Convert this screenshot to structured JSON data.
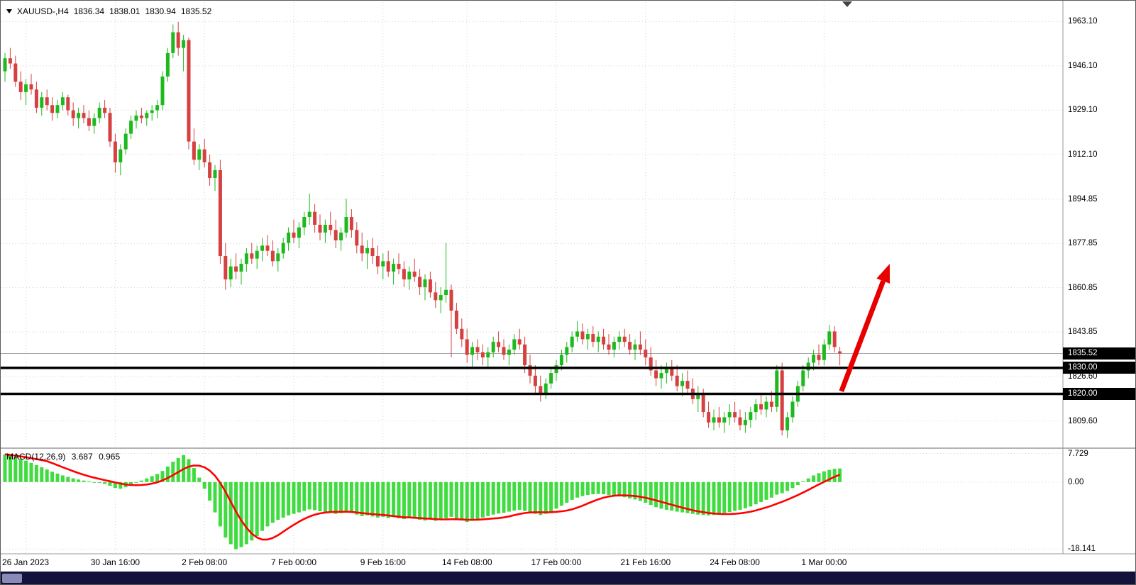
{
  "header": {
    "symbol": "XAUUSD-,H4",
    "open": "1836.34",
    "high": "1838.01",
    "low": "1830.94",
    "close": "1835.52"
  },
  "macd_header": {
    "label": "MACD(12,26,9)",
    "macd_value": "3.687",
    "signal_value": "0.965"
  },
  "price_axis": {
    "ticks": [
      {
        "text": "1963.10",
        "value": 1963.1
      },
      {
        "text": "1946.10",
        "value": 1946.1
      },
      {
        "text": "1929.10",
        "value": 1929.1
      },
      {
        "text": "1912.10",
        "value": 1912.1
      },
      {
        "text": "1894.85",
        "value": 1894.85
      },
      {
        "text": "1877.85",
        "value": 1877.85
      },
      {
        "text": "1860.85",
        "value": 1860.85
      },
      {
        "text": "1843.85",
        "value": 1843.85
      },
      {
        "text": "1826.60",
        "value": 1826.6
      },
      {
        "text": "1809.60",
        "value": 1809.6
      }
    ],
    "badges": [
      {
        "text": "1835.52",
        "value": 1835.52,
        "kind": "current-price"
      },
      {
        "text": "1830.00",
        "value": 1830.0,
        "kind": "horizontal-line"
      },
      {
        "text": "1820.00",
        "value": 1820.0,
        "kind": "horizontal-line"
      }
    ]
  },
  "macd_axis": {
    "ticks": [
      {
        "text": "7.729",
        "value": 7.729
      },
      {
        "text": "0.00",
        "value": 0.0
      },
      {
        "text": "-18.141",
        "value": -18.141
      }
    ]
  },
  "time_axis": {
    "ticks": [
      {
        "text": "26 Jan 2023",
        "index": 4
      },
      {
        "text": "30 Jan 16:00",
        "index": 21
      },
      {
        "text": "2 Feb 08:00",
        "index": 38
      },
      {
        "text": "7 Feb 00:00",
        "index": 55
      },
      {
        "text": "9 Feb 16:00",
        "index": 72
      },
      {
        "text": "14 Feb 08:00",
        "index": 88
      },
      {
        "text": "17 Feb 00:00",
        "index": 105
      },
      {
        "text": "21 Feb 16:00",
        "index": 122
      },
      {
        "text": "24 Feb 08:00",
        "index": 139
      },
      {
        "text": "1 Mar 00:00",
        "index": 156
      }
    ]
  },
  "colors": {
    "bull": "#1db91d",
    "bear": "#d64040",
    "macd_hist": "#3fdc3f",
    "signal_line": "#ff0000",
    "hline": "#000000",
    "grid": "#d6d6d6",
    "badge_bg": "#000000",
    "badge_text": "#ffffff",
    "arrow": "#e80000",
    "current_price_line": "#a8a8a8",
    "axis_separator": "#9a9a9a",
    "scrollbar_bg": "#12123c",
    "scrollbar_thumb": "#8a8ab8",
    "shift_marker": "#444444"
  },
  "chart_data": {
    "type": "candlestick",
    "symbol": "XAUUSD-",
    "timeframe": "H4",
    "title": "XAUUSD-,H4 1836.34 1838.01 1830.94 1835.52",
    "current_ohlc": {
      "open": 1836.34,
      "high": 1838.01,
      "low": 1830.94,
      "close": 1835.52
    },
    "current_price": 1835.52,
    "price_range": [
      1800.5,
      1969.5
    ],
    "grid": true,
    "hlines": [
      1830.0,
      1820.0
    ],
    "candles": [
      [
        1944,
        1951,
        1940,
        1949
      ],
      [
        1949,
        1953,
        1945,
        1947
      ],
      [
        1947,
        1950,
        1938,
        1940
      ],
      [
        1940,
        1944,
        1933,
        1936
      ],
      [
        1936,
        1941,
        1931,
        1939
      ],
      [
        1939,
        1943,
        1935,
        1937
      ],
      [
        1937,
        1940,
        1928,
        1930
      ],
      [
        1930,
        1936,
        1927,
        1934
      ],
      [
        1934,
        1937,
        1929,
        1931
      ],
      [
        1931,
        1934,
        1925,
        1928
      ],
      [
        1928,
        1933,
        1926,
        1931
      ],
      [
        1931,
        1936,
        1929,
        1934
      ],
      [
        1934,
        1935,
        1927,
        1929
      ],
      [
        1929,
        1932,
        1923,
        1926
      ],
      [
        1926,
        1930,
        1922,
        1928
      ],
      [
        1928,
        1931,
        1924,
        1926
      ],
      [
        1926,
        1929,
        1921,
        1923
      ],
      [
        1923,
        1928,
        1920,
        1926
      ],
      [
        1926,
        1932,
        1924,
        1930
      ],
      [
        1930,
        1933,
        1926,
        1928
      ],
      [
        1928,
        1930,
        1915,
        1917
      ],
      [
        1917,
        1920,
        1905,
        1909
      ],
      [
        1909,
        1916,
        1904,
        1914
      ],
      [
        1914,
        1922,
        1912,
        1920
      ],
      [
        1920,
        1927,
        1918,
        1925
      ],
      [
        1925,
        1929,
        1922,
        1927
      ],
      [
        1927,
        1930,
        1924,
        1926
      ],
      [
        1926,
        1929,
        1923,
        1928
      ],
      [
        1928,
        1931,
        1925,
        1929
      ],
      [
        1929,
        1933,
        1926,
        1931
      ],
      [
        1931,
        1944,
        1929,
        1942
      ],
      [
        1942,
        1953,
        1940,
        1951
      ],
      [
        1951,
        1962,
        1949,
        1959
      ],
      [
        1959,
        1963,
        1950,
        1953
      ],
      [
        1953,
        1958,
        1944,
        1956
      ],
      [
        1956,
        1957,
        1914,
        1917
      ],
      [
        1917,
        1922,
        1908,
        1910
      ],
      [
        1910,
        1916,
        1906,
        1914
      ],
      [
        1914,
        1918,
        1907,
        1909
      ],
      [
        1909,
        1912,
        1900,
        1903
      ],
      [
        1903,
        1908,
        1898,
        1906
      ],
      [
        1906,
        1910,
        1870,
        1873
      ],
      [
        1873,
        1878,
        1860,
        1864
      ],
      [
        1864,
        1872,
        1861,
        1869
      ],
      [
        1869,
        1874,
        1864,
        1867
      ],
      [
        1867,
        1872,
        1862,
        1870
      ],
      [
        1870,
        1876,
        1867,
        1874
      ],
      [
        1874,
        1878,
        1870,
        1872
      ],
      [
        1872,
        1877,
        1868,
        1875
      ],
      [
        1875,
        1880,
        1871,
        1877
      ],
      [
        1877,
        1881,
        1873,
        1875
      ],
      [
        1875,
        1879,
        1869,
        1871
      ],
      [
        1871,
        1876,
        1867,
        1874
      ],
      [
        1874,
        1880,
        1872,
        1878
      ],
      [
        1878,
        1884,
        1875,
        1882
      ],
      [
        1882,
        1887,
        1878,
        1880
      ],
      [
        1880,
        1886,
        1876,
        1884
      ],
      [
        1884,
        1890,
        1881,
        1888
      ],
      [
        1888,
        1897,
        1885,
        1890
      ],
      [
        1890,
        1893,
        1882,
        1885
      ],
      [
        1885,
        1889,
        1879,
        1882
      ],
      [
        1882,
        1887,
        1878,
        1885
      ],
      [
        1885,
        1890,
        1881,
        1883
      ],
      [
        1883,
        1887,
        1876,
        1879
      ],
      [
        1879,
        1884,
        1875,
        1882
      ],
      [
        1882,
        1895,
        1880,
        1888
      ],
      [
        1888,
        1891,
        1880,
        1883
      ],
      [
        1883,
        1886,
        1874,
        1877
      ],
      [
        1877,
        1882,
        1871,
        1874
      ],
      [
        1874,
        1879,
        1868,
        1876
      ],
      [
        1876,
        1880,
        1870,
        1873
      ],
      [
        1873,
        1877,
        1866,
        1869
      ],
      [
        1869,
        1874,
        1864,
        1871
      ],
      [
        1871,
        1875,
        1865,
        1867
      ],
      [
        1867,
        1872,
        1862,
        1870
      ],
      [
        1870,
        1874,
        1866,
        1868
      ],
      [
        1868,
        1871,
        1861,
        1864
      ],
      [
        1864,
        1869,
        1860,
        1867
      ],
      [
        1867,
        1872,
        1863,
        1865
      ],
      [
        1865,
        1868,
        1858,
        1861
      ],
      [
        1861,
        1866,
        1856,
        1864
      ],
      [
        1864,
        1867,
        1857,
        1859
      ],
      [
        1859,
        1863,
        1853,
        1856
      ],
      [
        1856,
        1861,
        1851,
        1858
      ],
      [
        1858,
        1878,
        1855,
        1860
      ],
      [
        1860,
        1862,
        1834,
        1852
      ],
      [
        1852,
        1855,
        1843,
        1845
      ],
      [
        1845,
        1849,
        1838,
        1841
      ],
      [
        1841,
        1845,
        1832,
        1835
      ],
      [
        1835,
        1840,
        1830,
        1838
      ],
      [
        1838,
        1841,
        1833,
        1836
      ],
      [
        1836,
        1839,
        1831,
        1834
      ],
      [
        1834,
        1838,
        1830,
        1836
      ],
      [
        1836,
        1842,
        1834,
        1840
      ],
      [
        1840,
        1844,
        1836,
        1838
      ],
      [
        1838,
        1841,
        1833,
        1835
      ],
      [
        1835,
        1839,
        1831,
        1837
      ],
      [
        1837,
        1843,
        1835,
        1841
      ],
      [
        1841,
        1845,
        1837,
        1839
      ],
      [
        1839,
        1842,
        1828,
        1831
      ],
      [
        1831,
        1835,
        1824,
        1827
      ],
      [
        1827,
        1831,
        1820,
        1823
      ],
      [
        1823,
        1827,
        1817,
        1820
      ],
      [
        1820,
        1826,
        1818,
        1824
      ],
      [
        1824,
        1830,
        1822,
        1828
      ],
      [
        1828,
        1833,
        1825,
        1831
      ],
      [
        1831,
        1837,
        1829,
        1835
      ],
      [
        1835,
        1840,
        1832,
        1838
      ],
      [
        1838,
        1844,
        1836,
        1842
      ],
      [
        1842,
        1848,
        1840,
        1844
      ],
      [
        1844,
        1847,
        1839,
        1841
      ],
      [
        1841,
        1845,
        1837,
        1843
      ],
      [
        1843,
        1846,
        1838,
        1840
      ],
      [
        1840,
        1844,
        1836,
        1842
      ],
      [
        1842,
        1845,
        1837,
        1839
      ],
      [
        1839,
        1843,
        1835,
        1837
      ],
      [
        1837,
        1842,
        1834,
        1840
      ],
      [
        1840,
        1844,
        1837,
        1842
      ],
      [
        1842,
        1845,
        1838,
        1840
      ],
      [
        1840,
        1843,
        1835,
        1837
      ],
      [
        1837,
        1841,
        1833,
        1839
      ],
      [
        1839,
        1844,
        1835,
        1837
      ],
      [
        1837,
        1841,
        1831,
        1834
      ],
      [
        1834,
        1838,
        1827,
        1829
      ],
      [
        1829,
        1833,
        1823,
        1826
      ],
      [
        1826,
        1831,
        1822,
        1828
      ],
      [
        1828,
        1832,
        1824,
        1830
      ],
      [
        1830,
        1833,
        1825,
        1827
      ],
      [
        1827,
        1831,
        1821,
        1823
      ],
      [
        1823,
        1828,
        1819,
        1825
      ],
      [
        1825,
        1829,
        1820,
        1822
      ],
      [
        1822,
        1826,
        1816,
        1818
      ],
      [
        1818,
        1823,
        1813,
        1820
      ],
      [
        1820,
        1822,
        1811,
        1813
      ],
      [
        1813,
        1817,
        1807,
        1809
      ],
      [
        1809,
        1814,
        1806,
        1811
      ],
      [
        1811,
        1815,
        1807,
        1809
      ],
      [
        1809,
        1813,
        1805,
        1811
      ],
      [
        1811,
        1816,
        1808,
        1813
      ],
      [
        1813,
        1817,
        1809,
        1811
      ],
      [
        1811,
        1814,
        1806,
        1808
      ],
      [
        1808,
        1813,
        1805,
        1810
      ],
      [
        1810,
        1815,
        1807,
        1813
      ],
      [
        1813,
        1818,
        1810,
        1816
      ],
      [
        1816,
        1820,
        1812,
        1814
      ],
      [
        1814,
        1819,
        1811,
        1817
      ],
      [
        1817,
        1821,
        1813,
        1815
      ],
      [
        1815,
        1831,
        1813,
        1829
      ],
      [
        1829,
        1832,
        1804,
        1806
      ],
      [
        1806,
        1813,
        1803,
        1811
      ],
      [
        1811,
        1819,
        1809,
        1817
      ],
      [
        1817,
        1825,
        1815,
        1823
      ],
      [
        1823,
        1831,
        1821,
        1829
      ],
      [
        1829,
        1834,
        1826,
        1832
      ],
      [
        1832,
        1837,
        1829,
        1835
      ],
      [
        1835,
        1839,
        1831,
        1833
      ],
      [
        1833,
        1841,
        1831,
        1839
      ],
      [
        1839,
        1846.5,
        1837,
        1844
      ],
      [
        1844,
        1846,
        1836,
        1838
      ],
      [
        1836.34,
        1838.01,
        1830.94,
        1835.52
      ]
    ],
    "indicator": {
      "type": "macd",
      "params": [
        12,
        26,
        9
      ],
      "macd_value": 3.687,
      "signal_value": 0.965,
      "signal_period": 9,
      "range": [
        -19.4,
        8.6
      ],
      "histogram": [
        7.5,
        7.2,
        6.8,
        6.3,
        5.8,
        5.2,
        4.6,
        4.0,
        3.4,
        2.8,
        2.3,
        1.8,
        1.4,
        1.0,
        0.7,
        0.4,
        0.2,
        0.0,
        -0.2,
        -0.5,
        -1.0,
        -1.6,
        -1.8,
        -1.4,
        -0.8,
        -0.2,
        0.4,
        1.0,
        1.6,
        2.2,
        3.0,
        4.2,
        5.5,
        6.5,
        7.3,
        6.2,
        3.8,
        1.2,
        -1.8,
        -5.0,
        -8.2,
        -12.0,
        -15.0,
        -16.8,
        -18.141,
        -17.6,
        -16.8,
        -15.8,
        -14.6,
        -13.2,
        -12.0,
        -11.0,
        -10.2,
        -9.6,
        -9.0,
        -8.6,
        -8.2,
        -7.8,
        -7.4,
        -7.6,
        -7.9,
        -8.1,
        -8.3,
        -8.6,
        -8.4,
        -8.0,
        -8.3,
        -8.8,
        -9.2,
        -9.0,
        -9.3,
        -9.6,
        -9.4,
        -9.7,
        -9.5,
        -9.8,
        -10.0,
        -9.7,
        -9.9,
        -10.2,
        -10.4,
        -10.1,
        -10.5,
        -10.3,
        -9.8,
        -9.4,
        -9.9,
        -10.4,
        -10.8,
        -10.5,
        -10.0,
        -9.6,
        -9.2,
        -8.8,
        -8.5,
        -8.3,
        -8.0,
        -7.7,
        -7.5,
        -7.8,
        -8.2,
        -8.6,
        -8.9,
        -8.6,
        -8.0,
        -7.2,
        -6.4,
        -5.6,
        -4.8,
        -4.2,
        -3.8,
        -3.5,
        -3.3,
        -3.2,
        -3.3,
        -3.5,
        -3.7,
        -3.9,
        -4.1,
        -4.4,
        -4.7,
        -5.1,
        -5.6,
        -6.2,
        -6.8,
        -7.2,
        -7.5,
        -7.7,
        -8.0,
        -8.2,
        -8.4,
        -8.6,
        -8.8,
        -8.9,
        -9.0,
        -8.9,
        -8.7,
        -8.4,
        -8.1,
        -7.8,
        -7.5,
        -7.1,
        -6.6,
        -6.0,
        -5.4,
        -4.8,
        -4.2,
        -3.4,
        -3.0,
        -2.4,
        -1.6,
        -0.8,
        0.2,
        1.0,
        1.8,
        2.4,
        2.9,
        3.3,
        3.6,
        3.687
      ]
    },
    "annotations": [
      {
        "type": "arrow",
        "x_from_bar": 159.3,
        "price_from": 1821,
        "x_to_bar": 168.5,
        "price_to": 1870,
        "color": "#e80000"
      }
    ]
  }
}
